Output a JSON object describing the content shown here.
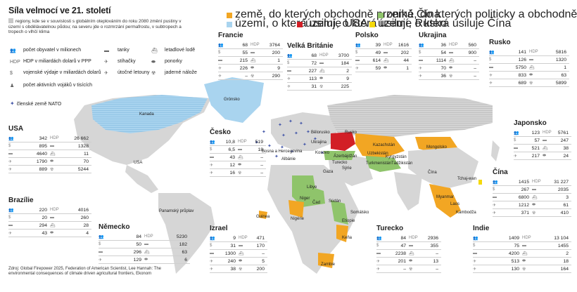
{
  "title": "Síla velmocí ve 21. století",
  "note": "regiony, kde se v souvislosti s globálním oteplováním do roku 2080 změní pustiny v území s obdělávatelnou půdou; na severu jde o rozmrzání permafrostu, v subtropech a tropech o vlhčí klima",
  "legend": {
    "china_econ": "země, do kterých obchodně proniká Čína",
    "turkey": "země, do kterých politicky a obchodně proniká Turecko",
    "usa_claim": "území, o která usiluje USA",
    "russia_claim": "území, o která usiluje Rusko",
    "china_claim": "území, o která usiluje Čína",
    "colors": {
      "china_econ": "#f2a623",
      "turkey": "#8fc46b",
      "usa_claim": "#a9d4ef",
      "russia_claim": "#d21f26",
      "china_claim": "#f5d90a",
      "land": "#d8d8d8",
      "warming": "#c6c6c6",
      "nato": "#4457a8"
    }
  },
  "icon_legend": {
    "population": "počet obyvatel v milionech",
    "gdp": "HDP v miliardách dolarů v PPP",
    "military": "vojenské výdaje v miliardách dolarů",
    "soldiers": "počet aktivních vojáků v tisících",
    "tanks": "tanky",
    "fighters": "stíhačky",
    "attack": "útočné letouny",
    "carriers": "letadlové lodě",
    "subs": "ponorky",
    "nuclear": "jaderné nálože",
    "nato": "členské země NATO"
  },
  "countries": {
    "usa": {
      "name": "USA",
      "rows": [
        [
          "342",
          "26 662"
        ],
        [
          "895",
          "1328"
        ],
        [
          "4640",
          "11"
        ],
        [
          "1790",
          "70"
        ],
        [
          "889",
          "5244"
        ]
      ]
    },
    "brazil": {
      "name": "Brazílie",
      "rows": [
        [
          "220",
          "4016"
        ],
        [
          "20",
          "260"
        ],
        [
          "294",
          "28"
        ],
        [
          "43",
          "4"
        ]
      ]
    },
    "germany": {
      "name": "Německo",
      "rows": [
        [
          "84",
          "5230"
        ],
        [
          "50",
          "182"
        ],
        [
          "296",
          "63"
        ],
        [
          "129",
          "6"
        ]
      ]
    },
    "france": {
      "name": "Francie",
      "rows": [
        [
          "68",
          "3764"
        ],
        [
          "55",
          "200"
        ],
        [
          "215",
          "1"
        ],
        [
          "226",
          "9"
        ],
        [
          "–",
          "290"
        ]
      ]
    },
    "uk": {
      "name": "Velká Británie",
      "rows": [
        [
          "68",
          "3700"
        ],
        [
          "72",
          "184"
        ],
        [
          "227",
          "2"
        ],
        [
          "113",
          "9"
        ],
        [
          "31",
          "225"
        ]
      ]
    },
    "poland": {
      "name": "Polsko",
      "rows": [
        [
          "39",
          "1616"
        ],
        [
          "49",
          "202"
        ],
        [
          "614",
          "44"
        ],
        [
          "59",
          "1"
        ]
      ]
    },
    "ukraine": {
      "name": "Ukrajina",
      "rows": [
        [
          "36",
          "560"
        ],
        [
          "54",
          "900"
        ],
        [
          "1114",
          "–"
        ],
        [
          "70",
          "–"
        ],
        [
          "36",
          "–"
        ]
      ]
    },
    "russia": {
      "name": "Rusko",
      "rows": [
        [
          "141",
          "5816"
        ],
        [
          "126",
          "1320"
        ],
        [
          "5750",
          "1"
        ],
        [
          "833",
          "63"
        ],
        [
          "689",
          "5899"
        ]
      ]
    },
    "czech": {
      "name": "Česko",
      "rows": [
        [
          "10,8",
          "519"
        ],
        [
          "6,5",
          "18"
        ],
        [
          "43",
          "–"
        ],
        [
          "12",
          "–"
        ],
        [
          "16",
          "–"
        ]
      ]
    },
    "israel": {
      "name": "Izrael",
      "rows": [
        [
          "9",
          "471"
        ],
        [
          "31",
          "170"
        ],
        [
          "1300",
          "–"
        ],
        [
          "240",
          "5"
        ],
        [
          "38",
          "200"
        ]
      ]
    },
    "turkey": {
      "name": "Turecko",
      "rows": [
        [
          "84",
          "2936"
        ],
        [
          "47",
          "355"
        ],
        [
          "2238",
          "–"
        ],
        [
          "201",
          "13"
        ],
        [
          "–",
          "–"
        ]
      ]
    },
    "japan": {
      "name": "Japonsko",
      "rows": [
        [
          "123",
          "5761"
        ],
        [
          "57",
          "247"
        ],
        [
          "521",
          "38"
        ],
        [
          "217",
          "24"
        ]
      ]
    },
    "china": {
      "name": "Čína",
      "rows": [
        [
          "1415",
          "31 227"
        ],
        [
          "267",
          "2035"
        ],
        [
          "6800",
          "3"
        ],
        [
          "1212",
          "61"
        ],
        [
          "371",
          "410"
        ]
      ]
    },
    "india": {
      "name": "Indie",
      "rows": [
        [
          "1409",
          "13 104"
        ],
        [
          "75",
          "1455"
        ],
        [
          "4200",
          "2"
        ],
        [
          "513",
          "18"
        ],
        [
          "130",
          "164"
        ]
      ]
    }
  },
  "map_labels": {
    "kanada": "Kanada",
    "gronsko": "Grónsko",
    "usa": "USA",
    "panama": "Panamský průplav",
    "rusko": "Rusko",
    "belorusko": "Bělorusko",
    "ukrajina": "Ukrajina",
    "kosovo": "Kosovo",
    "bosna": "Bosna a Hercegovina",
    "albanie": "Albánie",
    "gaza": "Gaza",
    "syrie": "Sýrie",
    "azerbajdzan": "Ázerbájdžán",
    "turecko": "Turecko",
    "kazachstan": "Kazachstán",
    "uzbekistan": "Uzbekistán",
    "turkmenistan": "Turkmenistán",
    "kyrgyzstan": "Kyrgyzstán",
    "tadzikistan": "Tádžikistán",
    "mongolsko": "Mongolsko",
    "cina": "Čína",
    "tchajwan": "Tchaj-wan",
    "myanmar": "Myanmar",
    "laos": "Laos",
    "kambodza": "Kambodža",
    "libye": "Libye",
    "niger": "Niger",
    "cad": "Čad",
    "sudan": "Súdán",
    "nigerie": "Nigérie",
    "guinea": "Guinea",
    "etiopie": "Etiopie",
    "somalsko": "Somálsko",
    "kena": "Keňa",
    "zambie": "Zambie"
  },
  "source": "Zdroj: Global Firepower 2025, Federation of American Scientist, Lee Hannah: The environmental consequences of climate driven agricultural frontiers, Ekonom"
}
